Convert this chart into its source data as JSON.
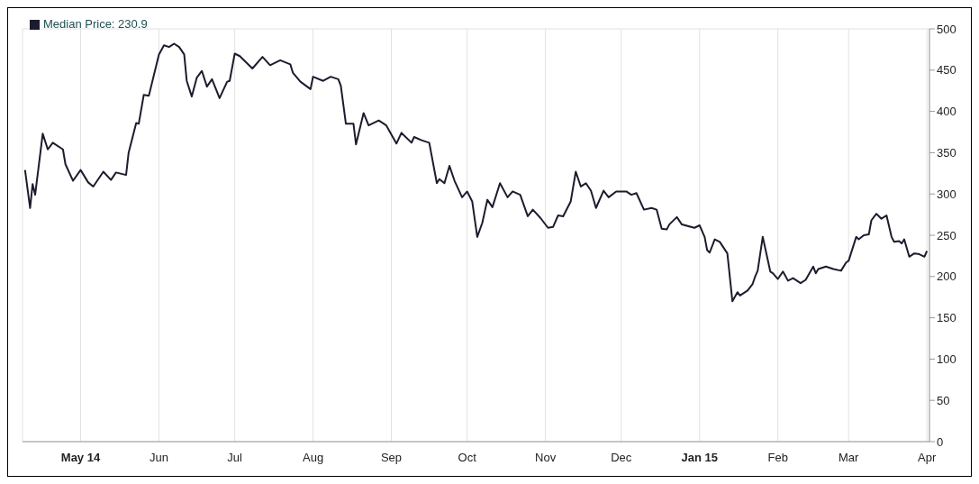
{
  "chart_data": {
    "type": "line",
    "legend": "top left",
    "grid": true,
    "marker": "none",
    "line_style": "solid",
    "xlim": [
      "2014-04-08",
      "2015-04-02"
    ],
    "xticks": [
      {
        "value": "2014-05-01",
        "label": "May 14"
      },
      {
        "value": "2014-06-01",
        "label": "Jun"
      },
      {
        "value": "2014-07-01",
        "label": "Jul"
      },
      {
        "value": "2014-08-01",
        "label": "Aug"
      },
      {
        "value": "2014-09-01",
        "label": "Sep"
      },
      {
        "value": "2014-10-01",
        "label": "Oct"
      },
      {
        "value": "2014-11-01",
        "label": "Nov"
      },
      {
        "value": "2014-12-01",
        "label": "Dec"
      },
      {
        "value": "2015-01-01",
        "label": "Jan 15"
      },
      {
        "value": "2015-02-01",
        "label": "Feb"
      },
      {
        "value": "2015-03-01",
        "label": "Mar"
      },
      {
        "value": "2015-04-01",
        "label": "Apr"
      }
    ],
    "ylim": [
      0,
      500
    ],
    "yticks": [
      0,
      50,
      100,
      150,
      200,
      250,
      300,
      350,
      400,
      450,
      500
    ],
    "x": [
      "2014-04-09",
      "2014-04-11",
      "2014-04-12",
      "2014-04-13",
      "2014-04-16",
      "2014-04-18",
      "2014-04-20",
      "2014-04-24",
      "2014-04-25",
      "2014-04-28",
      "2014-05-01",
      "2014-05-04",
      "2014-05-06",
      "2014-05-10",
      "2014-05-13",
      "2014-05-15",
      "2014-05-19",
      "2014-05-20",
      "2014-05-23",
      "2014-05-24",
      "2014-05-26",
      "2014-05-28",
      "2014-06-01",
      "2014-06-03",
      "2014-06-05",
      "2014-06-07",
      "2014-06-09",
      "2014-06-11",
      "2014-06-12",
      "2014-06-14",
      "2014-06-16",
      "2014-06-18",
      "2014-06-20",
      "2014-06-22",
      "2014-06-25",
      "2014-06-28",
      "2014-06-29",
      "2014-07-01",
      "2014-07-03",
      "2014-07-08",
      "2014-07-12",
      "2014-07-15",
      "2014-07-19",
      "2014-07-23",
      "2014-07-24",
      "2014-07-27",
      "2014-07-31",
      "2014-08-01",
      "2014-08-05",
      "2014-08-08",
      "2014-08-11",
      "2014-08-12",
      "2014-08-14",
      "2014-08-17",
      "2014-08-18",
      "2014-08-21",
      "2014-08-23",
      "2014-08-27",
      "2014-08-30",
      "2014-09-03",
      "2014-09-05",
      "2014-09-09",
      "2014-09-10",
      "2014-09-13",
      "2014-09-16",
      "2014-09-19",
      "2014-09-20",
      "2014-09-22",
      "2014-09-24",
      "2014-09-26",
      "2014-09-29",
      "2014-10-01",
      "2014-10-03",
      "2014-10-05",
      "2014-10-07",
      "2014-10-09",
      "2014-10-11",
      "2014-10-14",
      "2014-10-17",
      "2014-10-19",
      "2014-10-22",
      "2014-10-25",
      "2014-10-27",
      "2014-10-30",
      "2014-11-02",
      "2014-11-04",
      "2014-11-06",
      "2014-11-08",
      "2014-11-11",
      "2014-11-13",
      "2014-11-15",
      "2014-11-17",
      "2014-11-19",
      "2014-11-21",
      "2014-11-24",
      "2014-11-26",
      "2014-11-29",
      "2014-12-03",
      "2014-12-05",
      "2014-12-07",
      "2014-12-10",
      "2014-12-13",
      "2014-12-15",
      "2014-12-17",
      "2014-12-19",
      "2014-12-20",
      "2014-12-23",
      "2014-12-25",
      "2014-12-30",
      "2015-01-01",
      "2015-01-03",
      "2015-01-04",
      "2015-01-05",
      "2015-01-07",
      "2015-01-09",
      "2015-01-12",
      "2015-01-14",
      "2015-01-16",
      "2015-01-17",
      "2015-01-20",
      "2015-01-22",
      "2015-01-23",
      "2015-01-24",
      "2015-01-26",
      "2015-01-29",
      "2015-01-30",
      "2015-02-01",
      "2015-02-03",
      "2015-02-05",
      "2015-02-07",
      "2015-02-10",
      "2015-02-12",
      "2015-02-15",
      "2015-02-16",
      "2015-02-17",
      "2015-02-20",
      "2015-02-23",
      "2015-02-26",
      "2015-02-28",
      "2015-03-01",
      "2015-03-04",
      "2015-03-05",
      "2015-03-07",
      "2015-03-09",
      "2015-03-10",
      "2015-03-12",
      "2015-03-14",
      "2015-03-16",
      "2015-03-18",
      "2015-03-19",
      "2015-03-21",
      "2015-03-22",
      "2015-03-23",
      "2015-03-25",
      "2015-03-27",
      "2015-03-29",
      "2015-03-31",
      "2015-04-01"
    ],
    "series": [
      {
        "name": "Median Price: 230.9",
        "color": "#1c1c2e",
        "values": [
          329,
          283,
          312,
          299,
          373,
          354,
          362,
          354,
          336,
          316,
          329,
          314,
          309,
          327,
          317,
          326,
          323,
          350,
          386,
          385,
          420,
          419,
          469,
          480,
          478,
          482,
          478,
          469,
          437,
          418,
          441,
          449,
          430,
          439,
          416,
          436,
          437,
          470,
          467,
          452,
          466,
          456,
          462,
          457,
          447,
          436,
          427,
          442,
          437,
          442,
          439,
          431,
          385,
          385,
          360,
          398,
          383,
          389,
          383,
          361,
          374,
          362,
          369,
          365,
          362,
          313,
          318,
          313,
          334,
          316,
          296,
          303,
          291,
          248,
          265,
          293,
          284,
          313,
          296,
          303,
          299,
          273,
          281,
          271,
          259,
          260,
          274,
          273,
          291,
          327,
          309,
          313,
          304,
          283,
          304,
          296,
          303,
          303,
          299,
          301,
          281,
          283,
          281,
          258,
          257,
          263,
          272,
          263,
          259,
          262,
          248,
          232,
          229,
          245,
          242,
          228,
          170,
          181,
          177,
          183,
          191,
          200,
          207,
          248,
          206,
          204,
          197,
          206,
          195,
          198,
          192,
          196,
          212,
          204,
          209,
          212,
          209,
          207,
          217,
          219,
          248,
          245,
          250,
          251,
          268,
          276,
          270,
          274,
          248,
          242,
          243,
          240,
          245,
          224,
          228,
          227,
          224,
          230.9
        ]
      }
    ]
  }
}
